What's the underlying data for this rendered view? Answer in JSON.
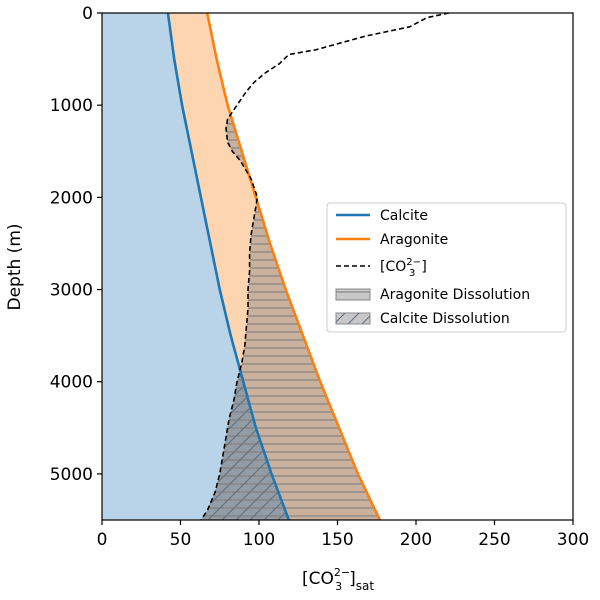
{
  "chart_data": {
    "type": "line",
    "xlabel_main": "[CO",
    "xlabel_sup": "2−",
    "xlabel_sub": "3",
    "xlabel_tail": "]",
    "xlabel_subscript_tail": "sat",
    "ylabel": "Depth (m)",
    "xlim": [
      0,
      300
    ],
    "ylim": [
      5500,
      0
    ],
    "y_inverted": true,
    "grid": false,
    "xticks": [
      0,
      50,
      100,
      150,
      200,
      250,
      300
    ],
    "yticks": [
      0,
      1000,
      2000,
      3000,
      4000,
      5000
    ],
    "legend_position": "right",
    "colors": {
      "calcite": "#1f77b4",
      "aragonite": "#ff7f0e",
      "carbonate": "#000000",
      "calcite_fill": "#b9d3e8",
      "aragonite_fill": "#fed5b1",
      "hatch_fill": "#808080"
    },
    "series": [
      {
        "name": "Calcite",
        "key": "calcite",
        "style": "solid",
        "depth": [
          0,
          500,
          1000,
          1500,
          2000,
          2500,
          3000,
          3500,
          4000,
          4500,
          5000,
          5500
        ],
        "values": [
          42,
          46,
          51,
          57,
          63,
          69,
          75,
          82,
          90,
          98,
          108,
          119
        ]
      },
      {
        "name": "Aragonite",
        "key": "aragonite",
        "style": "solid",
        "depth": [
          0,
          500,
          1000,
          1500,
          2000,
          2500,
          3000,
          3500,
          4000,
          4500,
          5000,
          5500
        ],
        "values": [
          67,
          73,
          80,
          89,
          98,
          107,
          117,
          128,
          139,
          151,
          163,
          177
        ]
      },
      {
        "name_main": "[CO",
        "name_sup": "2−",
        "name_sub": "3",
        "name_tail": "]",
        "key": "carbonate",
        "style": "dashed",
        "depth": [
          0,
          50,
          150,
          250,
          400,
          450,
          550,
          650,
          750,
          850,
          950,
          1050,
          1150,
          1250,
          1400,
          1500,
          1600,
          1800,
          2000,
          2200,
          2400,
          2600,
          2800,
          3000,
          3200,
          3400,
          3600,
          3800,
          4000,
          4200,
          4400,
          4600,
          4800,
          5000,
          5200,
          5400,
          5500
        ],
        "values": [
          221,
          207,
          196,
          168,
          136,
          119,
          113,
          104,
          97,
          92,
          88,
          84,
          80,
          79,
          80,
          83,
          88,
          95,
          99,
          97,
          95,
          94,
          94,
          93,
          93,
          92,
          91,
          89,
          86,
          84,
          81,
          79,
          77,
          75,
          72,
          67,
          63
        ]
      }
    ],
    "fills": [
      {
        "name": "Aragonite Dissolution",
        "between": [
          "carbonate",
          "aragonite"
        ],
        "where": "carbonate < aragonite",
        "hatch": "horizontal"
      },
      {
        "name": "Calcite Dissolution",
        "between": [
          "carbonate",
          "calcite"
        ],
        "where": "carbonate < calcite",
        "hatch": "diagonal"
      }
    ]
  }
}
